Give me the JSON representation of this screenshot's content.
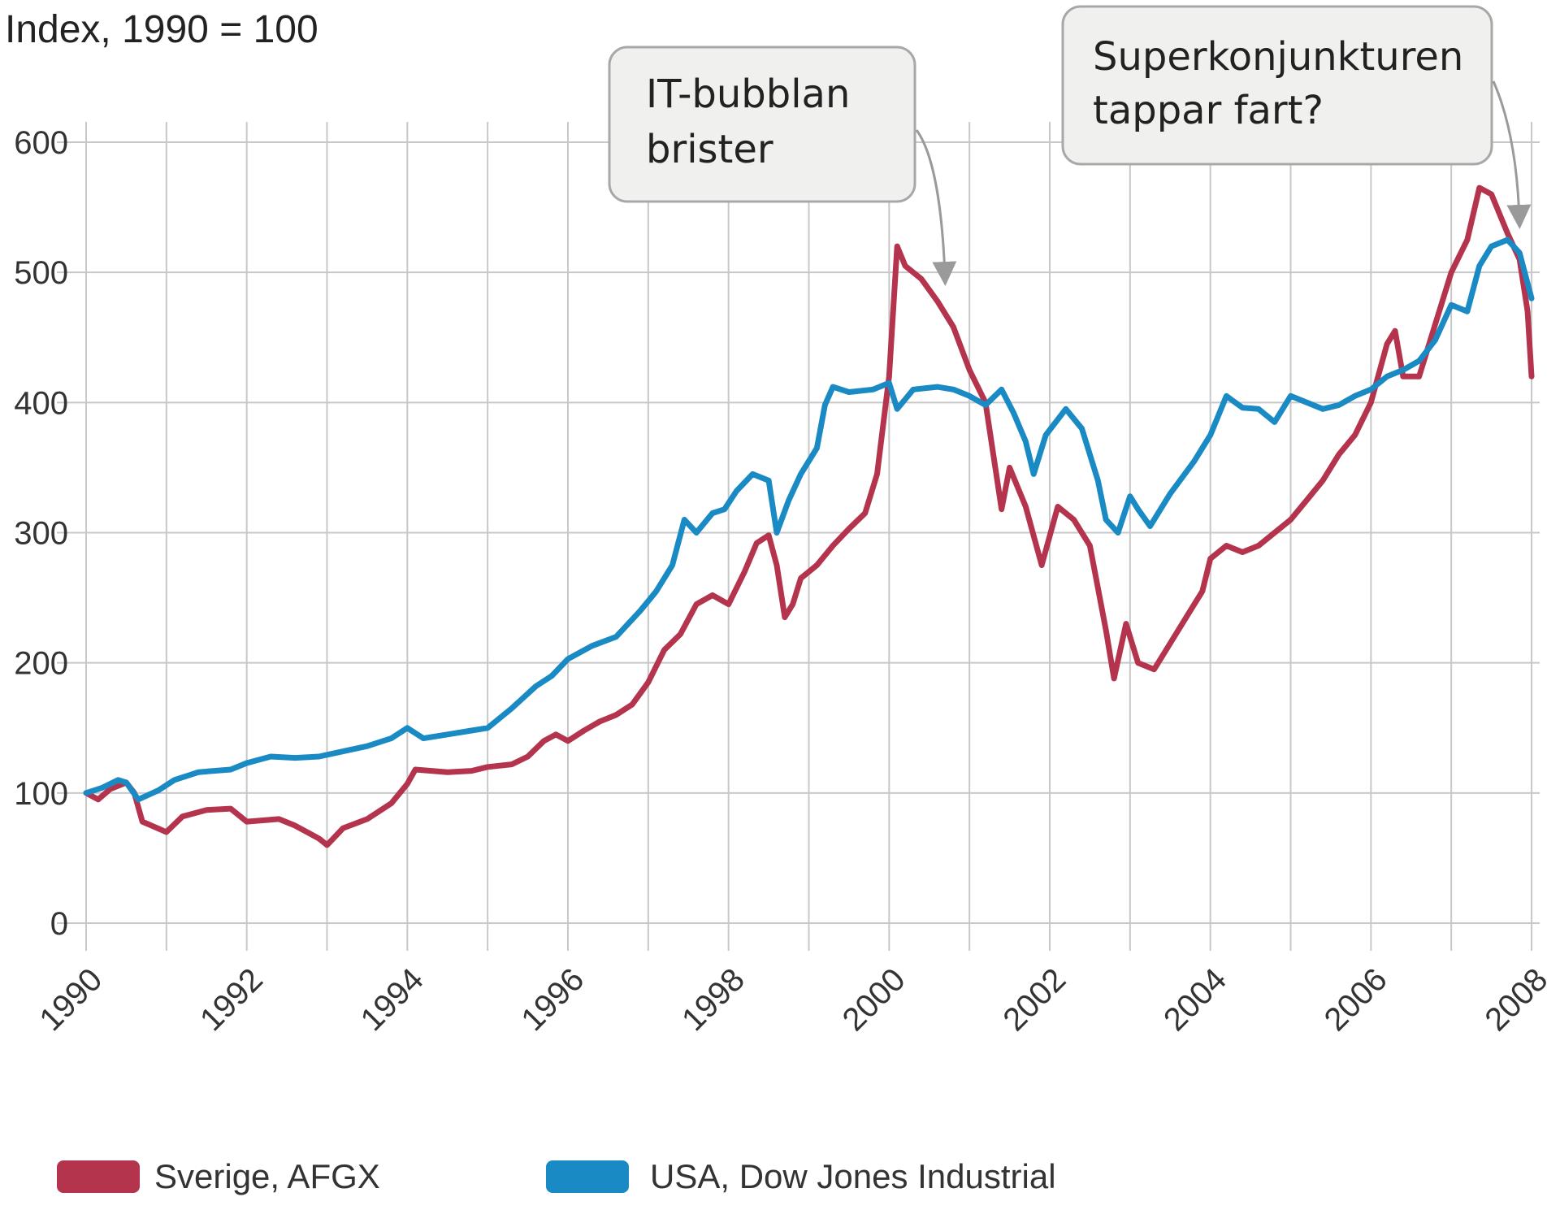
{
  "chart_data": {
    "type": "line",
    "title": "Index, 1990 = 100",
    "xlabel": "",
    "ylabel": "",
    "xlim": [
      1990,
      2008
    ],
    "ylim": [
      0,
      600
    ],
    "y_ticks": [
      0,
      100,
      200,
      300,
      400,
      500,
      600
    ],
    "x_ticks": [
      "1990",
      "1992",
      "1994",
      "1996",
      "1998",
      "2000",
      "2002",
      "2004",
      "2006",
      "2008"
    ],
    "grid": true,
    "legend_position": "bottom",
    "series": [
      {
        "name": "Sverige, AFGX",
        "color": "#b5344d",
        "points": [
          [
            1990.0,
            100
          ],
          [
            1990.15,
            95
          ],
          [
            1990.3,
            103
          ],
          [
            1990.5,
            108
          ],
          [
            1990.6,
            100
          ],
          [
            1990.7,
            78
          ],
          [
            1991.0,
            70
          ],
          [
            1991.2,
            82
          ],
          [
            1991.5,
            87
          ],
          [
            1991.8,
            88
          ],
          [
            1992.0,
            78
          ],
          [
            1992.4,
            80
          ],
          [
            1992.6,
            75
          ],
          [
            1992.9,
            65
          ],
          [
            1993.0,
            60
          ],
          [
            1993.2,
            73
          ],
          [
            1993.5,
            80
          ],
          [
            1993.8,
            92
          ],
          [
            1994.0,
            107
          ],
          [
            1994.1,
            118
          ],
          [
            1994.3,
            117
          ],
          [
            1994.5,
            116
          ],
          [
            1994.8,
            117
          ],
          [
            1995.0,
            120
          ],
          [
            1995.3,
            122
          ],
          [
            1995.5,
            128
          ],
          [
            1995.7,
            140
          ],
          [
            1995.85,
            145
          ],
          [
            1996.0,
            140
          ],
          [
            1996.2,
            148
          ],
          [
            1996.4,
            155
          ],
          [
            1996.6,
            160
          ],
          [
            1996.8,
            168
          ],
          [
            1997.0,
            185
          ],
          [
            1997.2,
            210
          ],
          [
            1997.4,
            222
          ],
          [
            1997.6,
            245
          ],
          [
            1997.8,
            252
          ],
          [
            1998.0,
            245
          ],
          [
            1998.2,
            270
          ],
          [
            1998.35,
            292
          ],
          [
            1998.5,
            298
          ],
          [
            1998.6,
            275
          ],
          [
            1998.7,
            235
          ],
          [
            1998.8,
            245
          ],
          [
            1998.9,
            265
          ],
          [
            1999.1,
            275
          ],
          [
            1999.3,
            290
          ],
          [
            1999.5,
            303
          ],
          [
            1999.7,
            315
          ],
          [
            1999.85,
            345
          ],
          [
            2000.0,
            420
          ],
          [
            2000.1,
            520
          ],
          [
            2000.2,
            505
          ],
          [
            2000.4,
            495
          ],
          [
            2000.6,
            478
          ],
          [
            2000.8,
            458
          ],
          [
            2001.0,
            425
          ],
          [
            2001.2,
            400
          ],
          [
            2001.4,
            318
          ],
          [
            2001.5,
            350
          ],
          [
            2001.7,
            320
          ],
          [
            2001.9,
            275
          ],
          [
            2002.1,
            320
          ],
          [
            2002.3,
            310
          ],
          [
            2002.5,
            290
          ],
          [
            2002.7,
            225
          ],
          [
            2002.8,
            188
          ],
          [
            2002.95,
            230
          ],
          [
            2003.1,
            200
          ],
          [
            2003.3,
            195
          ],
          [
            2003.5,
            215
          ],
          [
            2003.7,
            235
          ],
          [
            2003.9,
            255
          ],
          [
            2004.0,
            280
          ],
          [
            2004.2,
            290
          ],
          [
            2004.4,
            285
          ],
          [
            2004.6,
            290
          ],
          [
            2004.8,
            300
          ],
          [
            2005.0,
            310
          ],
          [
            2005.2,
            325
          ],
          [
            2005.4,
            340
          ],
          [
            2005.6,
            360
          ],
          [
            2005.8,
            375
          ],
          [
            2006.0,
            400
          ],
          [
            2006.2,
            445
          ],
          [
            2006.3,
            455
          ],
          [
            2006.4,
            420
          ],
          [
            2006.6,
            420
          ],
          [
            2006.8,
            460
          ],
          [
            2007.0,
            500
          ],
          [
            2007.2,
            525
          ],
          [
            2007.35,
            565
          ],
          [
            2007.5,
            560
          ],
          [
            2007.7,
            530
          ],
          [
            2007.85,
            510
          ],
          [
            2007.95,
            470
          ],
          [
            2008.0,
            420
          ]
        ]
      },
      {
        "name": "USA, Dow Jones Industrial",
        "color": "#1a8ac4",
        "points": [
          [
            1990.0,
            100
          ],
          [
            1990.2,
            104
          ],
          [
            1990.4,
            110
          ],
          [
            1990.5,
            108
          ],
          [
            1990.65,
            95
          ],
          [
            1990.9,
            102
          ],
          [
            1991.1,
            110
          ],
          [
            1991.4,
            116
          ],
          [
            1991.8,
            118
          ],
          [
            1992.0,
            123
          ],
          [
            1992.3,
            128
          ],
          [
            1992.6,
            127
          ],
          [
            1992.9,
            128
          ],
          [
            1993.2,
            132
          ],
          [
            1993.5,
            136
          ],
          [
            1993.8,
            142
          ],
          [
            1994.0,
            150
          ],
          [
            1994.2,
            142
          ],
          [
            1994.5,
            145
          ],
          [
            1994.8,
            148
          ],
          [
            1995.0,
            150
          ],
          [
            1995.3,
            165
          ],
          [
            1995.6,
            182
          ],
          [
            1995.8,
            190
          ],
          [
            1996.0,
            203
          ],
          [
            1996.3,
            213
          ],
          [
            1996.6,
            220
          ],
          [
            1996.9,
            240
          ],
          [
            1997.1,
            255
          ],
          [
            1997.3,
            275
          ],
          [
            1997.45,
            310
          ],
          [
            1997.6,
            300
          ],
          [
            1997.8,
            315
          ],
          [
            1997.95,
            318
          ],
          [
            1998.1,
            332
          ],
          [
            1998.3,
            345
          ],
          [
            1998.5,
            340
          ],
          [
            1998.6,
            300
          ],
          [
            1998.75,
            325
          ],
          [
            1998.9,
            345
          ],
          [
            1999.1,
            365
          ],
          [
            1999.2,
            398
          ],
          [
            1999.3,
            412
          ],
          [
            1999.5,
            408
          ],
          [
            1999.8,
            410
          ],
          [
            2000.0,
            415
          ],
          [
            2000.1,
            395
          ],
          [
            2000.3,
            410
          ],
          [
            2000.6,
            412
          ],
          [
            2000.8,
            410
          ],
          [
            2001.0,
            405
          ],
          [
            2001.2,
            398
          ],
          [
            2001.4,
            410
          ],
          [
            2001.55,
            392
          ],
          [
            2001.7,
            370
          ],
          [
            2001.8,
            345
          ],
          [
            2001.95,
            375
          ],
          [
            2002.2,
            395
          ],
          [
            2002.4,
            380
          ],
          [
            2002.6,
            340
          ],
          [
            2002.7,
            310
          ],
          [
            2002.85,
            300
          ],
          [
            2003.0,
            328
          ],
          [
            2003.1,
            318
          ],
          [
            2003.25,
            305
          ],
          [
            2003.5,
            330
          ],
          [
            2003.8,
            355
          ],
          [
            2004.0,
            375
          ],
          [
            2004.2,
            405
          ],
          [
            2004.4,
            396
          ],
          [
            2004.6,
            395
          ],
          [
            2004.8,
            385
          ],
          [
            2005.0,
            405
          ],
          [
            2005.2,
            400
          ],
          [
            2005.4,
            395
          ],
          [
            2005.6,
            398
          ],
          [
            2005.8,
            405
          ],
          [
            2006.0,
            410
          ],
          [
            2006.2,
            420
          ],
          [
            2006.4,
            425
          ],
          [
            2006.6,
            432
          ],
          [
            2006.8,
            448
          ],
          [
            2007.0,
            475
          ],
          [
            2007.2,
            470
          ],
          [
            2007.35,
            505
          ],
          [
            2007.5,
            520
          ],
          [
            2007.7,
            525
          ],
          [
            2007.85,
            515
          ],
          [
            2008.0,
            480
          ]
        ]
      }
    ],
    "annotations": [
      {
        "text_lines": [
          "IT-bubblan",
          "brister"
        ],
        "target": [
          2000.7,
          485
        ]
      },
      {
        "text_lines": [
          "Superkonjunkturen",
          "tappar fart?"
        ],
        "target": [
          2007.75,
          537
        ]
      }
    ]
  }
}
